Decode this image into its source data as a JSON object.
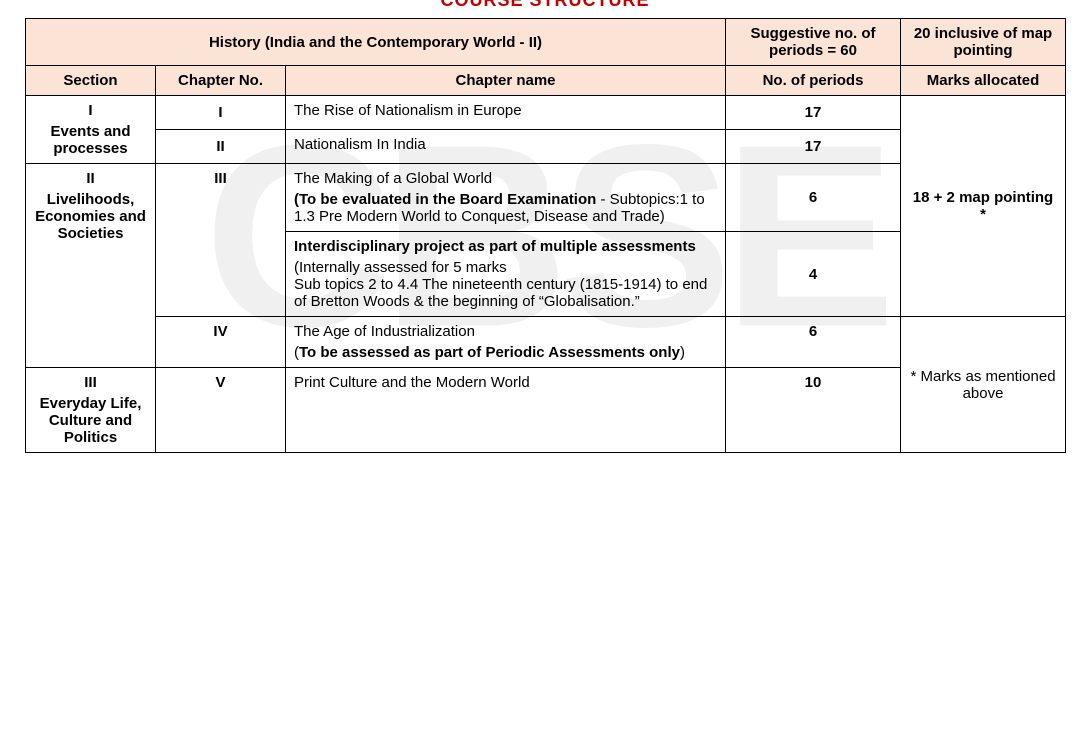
{
  "page_title_truncated": "COURSE STRUCTURE",
  "watermark_text": "CBSE",
  "header": {
    "subject": "History (India and the Contemporary World - II)",
    "suggestive": "Suggestive no. of periods = 60",
    "inclusive": "20 inclusive of map pointing",
    "col_section": "Section",
    "col_chno": "Chapter No.",
    "col_chname": "Chapter name",
    "col_periods": "No. of periods",
    "col_marks": "Marks allocated"
  },
  "sections": {
    "s1": {
      "num": "I",
      "name": "Events and processes"
    },
    "s2": {
      "num": "II",
      "name": "Livelihoods, Economies and Societies"
    },
    "s3": {
      "num": "III",
      "name": "Everyday Life, Culture and Politics"
    }
  },
  "rows": {
    "r1": {
      "chno": "I",
      "chname": "The Rise of Nationalism in Europe",
      "periods": "17"
    },
    "r2": {
      "chno": "II",
      "chname": "Nationalism In India",
      "periods": "17"
    },
    "r3a": {
      "chno": "III",
      "chname_line1": "The Making of a Global World",
      "chname_bold": "(To be evaluated in the Board Examination",
      "chname_rest": " - Subtopics:1 to 1.3 Pre Modern World to Conquest, Disease and Trade)",
      "periods": "6"
    },
    "r3b": {
      "chname_bold": "Interdisciplinary project as part of multiple assessments",
      "chname_rest": "(Internally assessed for 5 marks\nSub topics 2 to 4.4 The nineteenth century (1815-1914) to end of Bretton Woods & the beginning of “Globalisation.”",
      "periods": "4"
    },
    "r4": {
      "chno": "IV",
      "chname_line1": "The Age of Industrialization",
      "chname_bold": "To be assessed as part of Periodic Assessments only",
      "periods": "6"
    },
    "r5": {
      "chno": "V",
      "chname": "Print Culture and the Modern World",
      "periods": "10"
    }
  },
  "marks": {
    "map": "18 + 2 map pointing *",
    "footnote": "*  Marks as mentioned above"
  }
}
